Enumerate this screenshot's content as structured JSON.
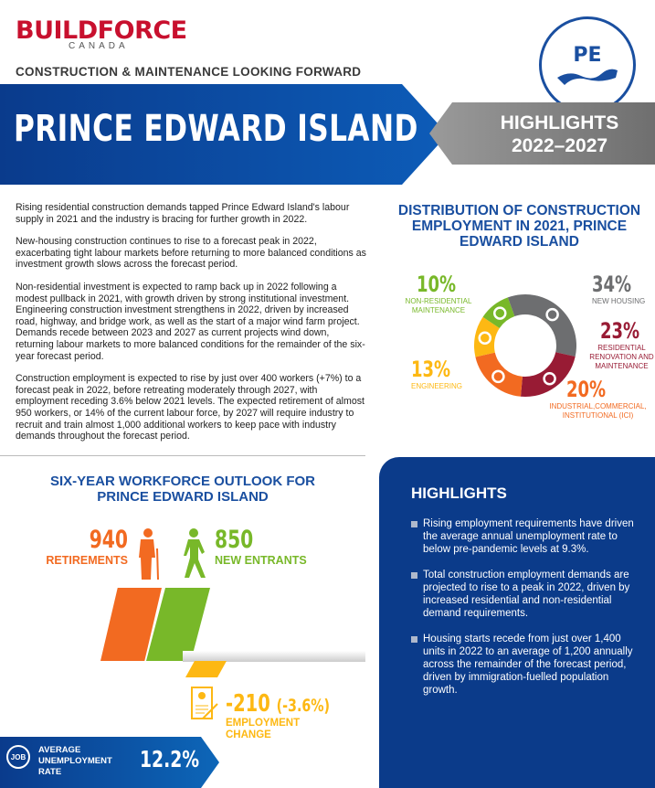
{
  "header": {
    "logo_main": "BUILDFORCE",
    "logo_sub": "CANADA",
    "badge": "PE",
    "subtitle": "CONSTRUCTION & MAINTENANCE LOOKING FORWARD",
    "title": "PRINCE EDWARD ISLAND",
    "highlights_line1": "HIGHLIGHTS",
    "highlights_line2": "2022–2027"
  },
  "body": {
    "paragraphs": [
      "Rising residential construction demands tapped Prince Edward Island's labour supply in 2021 and the industry is bracing for further growth in 2022.",
      "New-housing construction continues to rise to a forecast peak in 2022, exacerbating tight labour markets before returning to more balanced conditions as investment growth slows across the forecast period.",
      "Non-residential investment is expected to ramp back up in 2022 following a modest pullback in 2021, with growth driven by strong institutional investment. Engineering construction investment strengthens in 2022, driven by increased road, highway, and bridge work, as well as the start of a major wind farm project. Demands recede between 2023 and 2027 as current projects wind down, returning labour markets to more balanced conditions for the remainder of the six-year forecast period.",
      "Construction employment is expected to rise by just over 400 workers (+7%) to a forecast peak in 2022, before retreating moderately through 2027, with employment receding 3.6% below 2021 levels. The expected retirement of almost 950 workers, or 14% of the current labour force, by 2027 will require industry to recruit and train almost 1,000 additional workers to keep pace with industry demands throughout the forecast period."
    ]
  },
  "chart_data": {
    "type": "pie",
    "title": "DISTRIBUTION OF CONSTRUCTION EMPLOYMENT IN 2021, PRINCE EDWARD ISLAND",
    "slices": [
      {
        "label": "NEW HOUSING",
        "value": 34,
        "text": "34%",
        "color": "#6d6e70"
      },
      {
        "label": "RESIDENTIAL RENOVATION AND MAINTENANCE",
        "value": 23,
        "text": "23%",
        "color": "#981b34"
      },
      {
        "label": "INDUSTRIAL,COMMERCIAL, INSTITUTIONAL (ICI)",
        "value": 20,
        "text": "20%",
        "color": "#f26a21"
      },
      {
        "label": "ENGINEERING",
        "value": 13,
        "text": "13%",
        "color": "#fdb813"
      },
      {
        "label": "NON-RESIDENTIAL MAINTENANCE",
        "value": 10,
        "text": "10%",
        "color": "#78b829"
      }
    ]
  },
  "workforce": {
    "title_line1": "SIX-YEAR WORKFORCE OUTLOOK FOR",
    "title_line2": "PRINCE EDWARD ISLAND",
    "retirements_value": "940",
    "retirements_label": "RETIREMENTS",
    "entrants_value": "850",
    "entrants_label": "NEW ENTRANTS",
    "change_value": "-210",
    "change_pct": "(-3.6%)",
    "change_label1": "EMPLOYMENT",
    "change_label2": "CHANGE",
    "unemp_label1": "AVERAGE",
    "unemp_label2": "UNEMPLOYMENT",
    "unemp_label3": "RATE",
    "unemp_value": "12.2%",
    "job_icon_text": "JOB"
  },
  "highlights": {
    "title": "HIGHLIGHTS",
    "items": [
      "Rising employment requirements have driven the average annual unemployment rate to below pre-pandemic levels at 9.3%.",
      "Total construction employment demands are projected to rise to a peak in 2022, driven by increased residential and non-residential demand requirements.",
      "Housing starts recede from just over 1,400 units in 2022 to an average of 1,200 annually across the remainder of the forecast period, driven by immigration-fuelled population growth."
    ]
  }
}
